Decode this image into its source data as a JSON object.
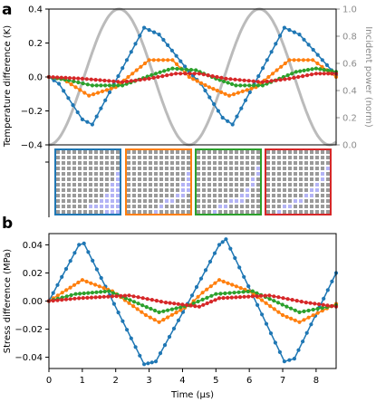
{
  "panels": {
    "a": {
      "label": "a"
    },
    "b": {
      "label": "b"
    }
  },
  "colors": {
    "blue": "#1f77b4",
    "orange": "#ff7f0e",
    "green": "#2ca02c",
    "red": "#d62728",
    "power": "#bbbbbb",
    "axis_gray": "#8c8c8c",
    "grid_cell": "#9a9a9a",
    "grid_highlight": "#b3b3f5"
  },
  "chart_data": [
    {
      "type": "line",
      "panel": "a",
      "xlabel": "",
      "ylabel": "Temperature difference (K)",
      "ylabel_right": "Incident power (norm)",
      "xlim": [
        0,
        8.6
      ],
      "ylim": [
        -0.4,
        0.4
      ],
      "ylim_right": [
        0,
        1.0
      ],
      "yticks": [
        "0.4",
        "0.2",
        "0.0",
        "−0.2",
        "−0.4"
      ],
      "yticks_right": [
        "1.0",
        "0.8",
        "0.6",
        "0.4",
        "0.2",
        "0.0"
      ],
      "power": {
        "period": 4.2,
        "peak_x": 2.1,
        "min": 0,
        "max": 1.0
      },
      "series": [
        {
          "color": "blue",
          "x": [
            0,
            0.3,
            1.0,
            1.3,
            2.85,
            3.3,
            4.2,
            4.55,
            5.2,
            5.5,
            7.05,
            7.5,
            8.6
          ],
          "y": [
            0.0,
            -0.04,
            -0.25,
            -0.28,
            0.29,
            0.25,
            0.03,
            -0.04,
            -0.24,
            -0.28,
            0.29,
            0.25,
            0.01
          ]
        },
        {
          "color": "orange",
          "x": [
            0,
            0.4,
            1.2,
            2.0,
            3.0,
            3.7,
            4.2,
            4.8,
            5.4,
            6.2,
            7.2,
            7.9,
            8.6
          ],
          "y": [
            0.0,
            -0.01,
            -0.11,
            -0.06,
            0.1,
            0.1,
            0.0,
            -0.06,
            -0.11,
            -0.06,
            0.1,
            0.1,
            0.0
          ]
        },
        {
          "color": "green",
          "x": [
            0,
            0.6,
            1.3,
            2.2,
            3.2,
            3.7,
            4.4,
            5.0,
            5.6,
            6.4,
            7.4,
            8.0,
            8.6
          ],
          "y": [
            0.0,
            -0.02,
            -0.05,
            -0.05,
            0.02,
            0.05,
            0.04,
            -0.01,
            -0.05,
            -0.05,
            0.03,
            0.05,
            0.03
          ]
        },
        {
          "color": "red",
          "x": [
            0,
            1.0,
            2.2,
            3.0,
            3.8,
            4.5,
            5.3,
            6.4,
            7.2,
            8.0,
            8.6
          ],
          "y": [
            0.0,
            -0.01,
            -0.03,
            -0.01,
            0.02,
            0.02,
            -0.01,
            -0.03,
            -0.01,
            0.02,
            0.02
          ]
        }
      ]
    },
    {
      "type": "line",
      "panel": "b",
      "xlabel": "Time (µs)",
      "ylabel": "Stress difference (MPa)",
      "xlim": [
        0,
        8.6
      ],
      "ylim": [
        -0.048,
        0.048
      ],
      "xticks": [
        "0",
        "1",
        "2",
        "3",
        "4",
        "5",
        "6",
        "7",
        "8"
      ],
      "yticks": [
        "0.04",
        "0.02",
        "0.00",
        "−0.02",
        "−0.04"
      ],
      "series": [
        {
          "color": "blue",
          "x": [
            0,
            0.9,
            1.05,
            2.85,
            3.2,
            4.15,
            5.1,
            5.3,
            7.05,
            7.35,
            8.6
          ],
          "y": [
            0.0,
            0.04,
            0.041,
            -0.045,
            -0.043,
            -0.002,
            0.04,
            0.044,
            -0.043,
            -0.041,
            0.02
          ]
        },
        {
          "color": "orange",
          "x": [
            0,
            0.4,
            1.0,
            1.9,
            2.9,
            3.3,
            4.2,
            4.6,
            5.1,
            6.0,
            7.0,
            7.5,
            8.6
          ],
          "y": [
            0.0,
            0.006,
            0.015,
            0.007,
            -0.01,
            -0.015,
            -0.003,
            0.006,
            0.015,
            0.007,
            -0.01,
            -0.015,
            -0.002
          ]
        },
        {
          "color": "green",
          "x": [
            0,
            0.8,
            1.8,
            3.3,
            4.2,
            5.0,
            6.1,
            7.5,
            8.6
          ],
          "y": [
            0.0,
            0.005,
            0.007,
            -0.008,
            -0.003,
            0.005,
            0.007,
            -0.008,
            -0.003
          ]
        },
        {
          "color": "red",
          "x": [
            0,
            0.9,
            2.4,
            3.5,
            4.5,
            5.1,
            6.6,
            7.7,
            8.6
          ],
          "y": [
            0.0,
            0.002,
            0.004,
            -0.001,
            -0.004,
            0.002,
            0.004,
            -0.001,
            -0.004
          ]
        }
      ]
    }
  ],
  "insets": [
    {
      "color": "blue",
      "highlight": [
        [
          10,
          6
        ],
        [
          10,
          7
        ],
        [
          10,
          8
        ],
        [
          9,
          9
        ],
        [
          8,
          10
        ],
        [
          7,
          10
        ],
        [
          6,
          10
        ],
        [
          5,
          11
        ],
        [
          4,
          11
        ],
        [
          9,
          10
        ],
        [
          9,
          11
        ],
        [
          8,
          11
        ],
        [
          7,
          11
        ],
        [
          6,
          11
        ],
        [
          10,
          10
        ],
        [
          10,
          11
        ],
        [
          10,
          9
        ],
        [
          11,
          9
        ],
        [
          11,
          10
        ],
        [
          11,
          11
        ],
        [
          8,
          9
        ],
        [
          9,
          8
        ]
      ]
    },
    {
      "color": "orange",
      "highlight": [
        [
          11,
          5
        ],
        [
          10,
          6
        ],
        [
          9,
          7
        ],
        [
          9,
          8
        ],
        [
          8,
          9
        ],
        [
          7,
          10
        ],
        [
          6,
          10
        ],
        [
          5,
          11
        ],
        [
          4,
          11
        ],
        [
          8,
          10
        ],
        [
          7,
          11
        ],
        [
          6,
          11
        ]
      ]
    },
    {
      "color": "green",
      "highlight": [
        [
          11,
          3
        ],
        [
          10,
          4
        ],
        [
          10,
          5
        ],
        [
          9,
          6
        ],
        [
          9,
          7
        ],
        [
          8,
          8
        ],
        [
          7,
          9
        ],
        [
          6,
          10
        ],
        [
          5,
          10
        ],
        [
          4,
          11
        ],
        [
          3,
          11
        ],
        [
          8,
          9
        ],
        [
          9,
          8
        ]
      ]
    },
    {
      "color": "red",
      "highlight": [
        [
          11,
          2
        ],
        [
          10,
          3
        ],
        [
          10,
          4
        ],
        [
          9,
          5
        ],
        [
          9,
          6
        ],
        [
          8,
          7
        ],
        [
          7,
          8
        ],
        [
          6,
          9
        ],
        [
          5,
          10
        ],
        [
          4,
          10
        ],
        [
          3,
          11
        ],
        [
          8,
          8
        ],
        [
          7,
          9
        ]
      ]
    }
  ]
}
